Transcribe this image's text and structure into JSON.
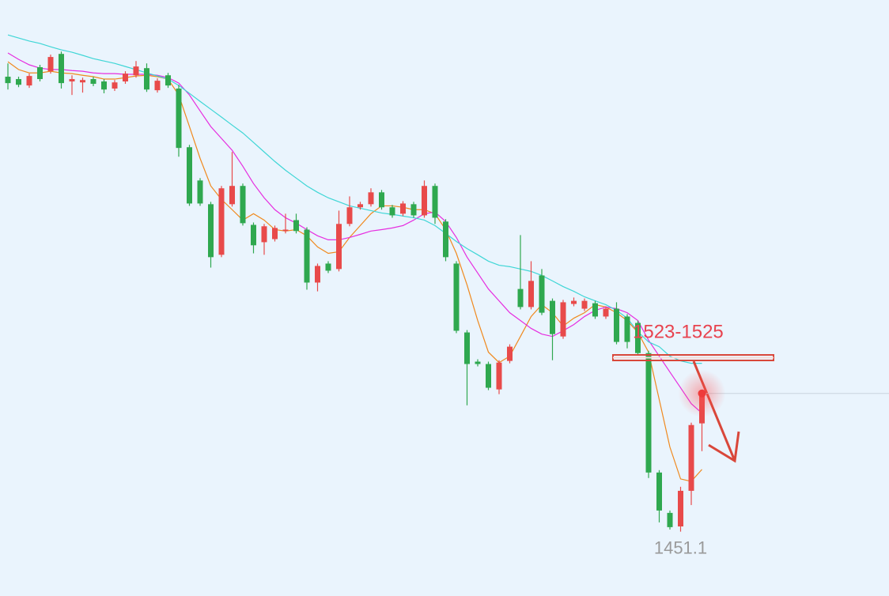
{
  "chart_data": {
    "type": "candlestick",
    "ylim": [
      1424,
      1675
    ],
    "up_color": "#e84a4a",
    "down_color": "#2fa84f",
    "open": [
      1642.7,
      1641.7,
      1639,
      1646.7,
      1645,
      1652.3,
      1640.7,
      1640.3,
      1641.7,
      1640.7,
      1637.7,
      1640.7,
      1643.3,
      1646.3,
      1637,
      1643.3,
      1637.7,
      1613,
      1599,
      1589,
      1567.7,
      1589,
      1596.7,
      1580.3,
      1573,
      1574.3,
      1577.7,
      1582.3,
      1578.3,
      1556,
      1564,
      1561.7,
      1580.7,
      1587.7,
      1589,
      1594,
      1587.7,
      1585,
      1589,
      1584.3,
      1596.7,
      1581.7,
      1564,
      1535,
      1522.7,
      1521.7,
      1511,
      1523,
      1553.3,
      1545.7,
      1559,
      1548.3,
      1533.3,
      1547,
      1545,
      1547.3,
      1541.7,
      1545,
      1541.7,
      1539,
      1526.3,
      1476,
      1459,
      1453.3,
      1468.3,
      1496.7
    ],
    "high": [
      1648.3,
      1642.7,
      1644,
      1647.7,
      1652,
      1653.3,
      1643.3,
      1642.3,
      1642.7,
      1641.7,
      1641.3,
      1645,
      1649.3,
      1648.3,
      1642,
      1644.3,
      1639.3,
      1614,
      1600,
      1590,
      1596.7,
      1611,
      1597.7,
      1581.3,
      1580.7,
      1580,
      1585,
      1585,
      1579.3,
      1564,
      1565,
      1586.3,
      1592.3,
      1590,
      1595.7,
      1595,
      1588.7,
      1590.3,
      1590,
      1599,
      1597.7,
      1582.7,
      1565,
      1536,
      1523.7,
      1522.7,
      1523.3,
      1530,
      1576,
      1565,
      1561.7,
      1549.3,
      1548.7,
      1549.7,
      1549.3,
      1548.3,
      1546,
      1547.7,
      1542.7,
      1540,
      1527.3,
      1477,
      1460,
      1470,
      1497,
      1510.7
    ],
    "low": [
      1637.3,
      1638.3,
      1638,
      1640.7,
      1644,
      1637.7,
      1635,
      1636,
      1638.7,
      1635.7,
      1636.7,
      1639.7,
      1642.3,
      1636.3,
      1636,
      1638,
      1609,
      1588.3,
      1588.3,
      1562.3,
      1566.7,
      1588,
      1580,
      1568.3,
      1567.7,
      1573.3,
      1576.7,
      1576.7,
      1553,
      1552.3,
      1560,
      1560.7,
      1579.7,
      1586.7,
      1588,
      1586.7,
      1583.3,
      1584,
      1583.3,
      1583.3,
      1580.7,
      1565,
      1534.7,
      1504.3,
      1520.7,
      1510.7,
      1509,
      1522,
      1544.7,
      1544.7,
      1542.3,
      1523.3,
      1532.3,
      1546,
      1544,
      1540.7,
      1540.7,
      1530,
      1528.3,
      1525.3,
      1473.7,
      1455,
      1452,
      1451.1,
      1462.3,
      1485
    ],
    "close": [
      1640,
      1639.3,
      1643,
      1641.7,
      1651,
      1640,
      1641.7,
      1641.3,
      1639.7,
      1637.3,
      1640.3,
      1644,
      1647,
      1637.3,
      1641,
      1639,
      1612.7,
      1589.3,
      1589.3,
      1566.7,
      1595.7,
      1596.7,
      1581,
      1571.7,
      1579.7,
      1579,
      1578.3,
      1577.7,
      1556,
      1563,
      1561,
      1580.7,
      1587.7,
      1589,
      1594,
      1587.7,
      1584.3,
      1589.3,
      1584.3,
      1596.7,
      1583.3,
      1566.7,
      1535.7,
      1521.7,
      1521.7,
      1511.7,
      1522.3,
      1529,
      1545.7,
      1556.7,
      1543.3,
      1534.3,
      1547.7,
      1548.3,
      1548.3,
      1541.7,
      1545,
      1531,
      1531,
      1526.3,
      1476,
      1460,
      1453,
      1468.3,
      1496,
      1509.3
    ],
    "series": [
      {
        "color": "#f0891e",
        "values": [
          1649,
          1645.7,
          1644.3,
          1644.3,
          1645,
          1644.3,
          1644,
          1643.3,
          1642.7,
          1641.7,
          1641.7,
          1642.3,
          1643,
          1643.3,
          1642.7,
          1641.7,
          1635,
          1621.7,
          1608.3,
          1596.7,
          1591,
          1586.7,
          1582.3,
          1585,
          1582.3,
          1578.3,
          1577.7,
          1578.3,
          1575.7,
          1571,
          1568.3,
          1569,
          1575,
          1580,
          1585,
          1588.3,
          1588.3,
          1587.7,
          1586.7,
          1586.7,
          1585,
          1578.3,
          1568.3,
          1555,
          1540,
          1526.7,
          1522.3,
          1525,
          1533.3,
          1541.7,
          1546.7,
          1543.3,
          1537.7,
          1541,
          1543.3,
          1546.7,
          1545.7,
          1543.3,
          1540,
          1535,
          1526.7,
          1506.7,
          1486.7,
          1473.3,
          1472.3,
          1477.3
        ]
      },
      {
        "color": "#e62ee0",
        "values": [
          1652.7,
          1650,
          1647.7,
          1646.3,
          1645.7,
          1645.7,
          1645.3,
          1645,
          1644.3,
          1644,
          1644,
          1643.7,
          1643.7,
          1643.7,
          1643.3,
          1642.3,
          1640,
          1635,
          1628.3,
          1621.7,
          1616.7,
          1611.7,
          1605,
          1597.7,
          1591.7,
          1586.7,
          1583.3,
          1581,
          1578.3,
          1575.7,
          1574,
          1574,
          1575,
          1576.3,
          1577.7,
          1578.3,
          1579,
          1580,
          1582.3,
          1585,
          1585.7,
          1581.7,
          1575,
          1566.7,
          1560,
          1553.3,
          1548.3,
          1543.3,
          1540,
          1536.7,
          1534.3,
          1533.3,
          1535.7,
          1538.3,
          1541.7,
          1544.3,
          1545.7,
          1545,
          1543.3,
          1540,
          1531.7,
          1525,
          1518.3,
          1511.7,
          1505,
          1501
        ]
      },
      {
        "color": "#3fd6d6",
        "values": [
          1660.3,
          1659,
          1657.7,
          1656.7,
          1655.3,
          1654,
          1653,
          1651.7,
          1650.3,
          1649.3,
          1648.3,
          1647,
          1645.7,
          1644.3,
          1643,
          1641.7,
          1639,
          1635.7,
          1632.3,
          1629,
          1625.7,
          1622.3,
          1619,
          1615,
          1611,
          1607,
          1603.3,
          1600,
          1596.7,
          1594,
          1591.7,
          1590,
          1588.3,
          1587.3,
          1586.3,
          1585.3,
          1584.7,
          1584,
          1583.3,
          1582.3,
          1580,
          1576.7,
          1573.3,
          1570.3,
          1567.7,
          1565,
          1563.3,
          1562.7,
          1561.7,
          1560.7,
          1559,
          1556.7,
          1554.3,
          1552.3,
          1550,
          1548.3,
          1546.7,
          1544.3,
          1541,
          1535.3,
          1531,
          1529,
          1525,
          1523,
          1522,
          1522
        ]
      }
    ],
    "annotation": "1523-1525",
    "low_label": "1451.1"
  }
}
